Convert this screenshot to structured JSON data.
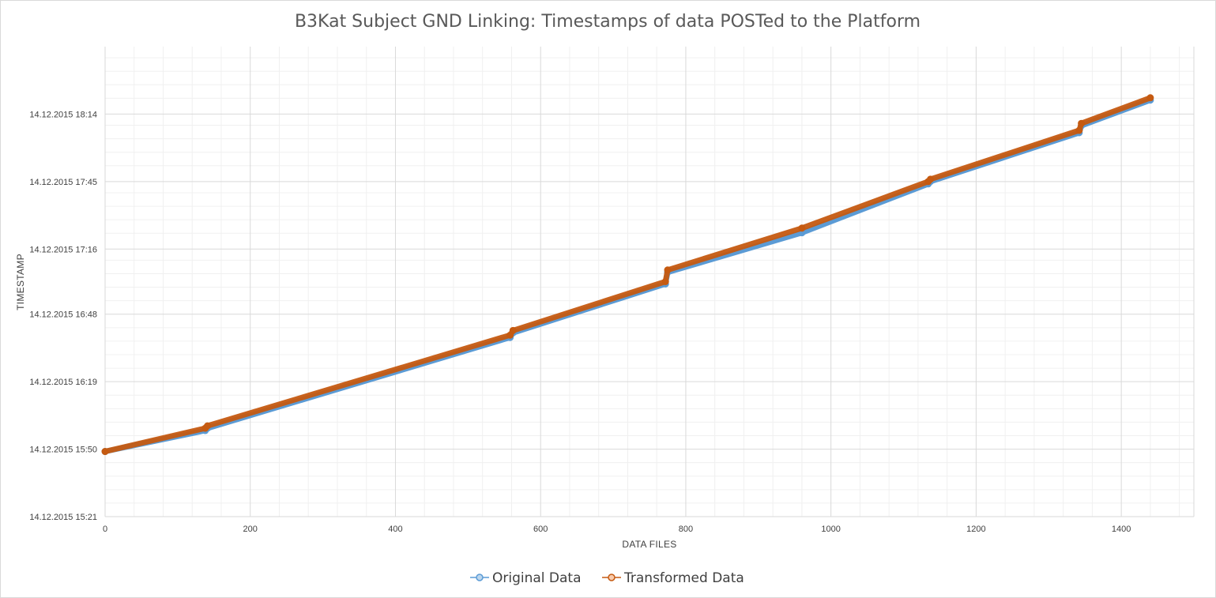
{
  "chart_data": {
    "type": "scatter",
    "title": "B3Kat Subject GND Linking: Timestamps of data POSTed to the Platform",
    "xlabel": "DATA FILES",
    "ylabel": "TIMESTAMP",
    "xlim": [
      0,
      1500
    ],
    "x_ticks": [
      0,
      200,
      400,
      600,
      800,
      1000,
      1200,
      1400
    ],
    "y_ticks": [
      "14.12.2015 15:21",
      "14.12.2015 15:50",
      "14.12.2015 16:19",
      "14.12.2015 16:48",
      "14.12.2015 17:16",
      "14.12.2015 17:45",
      "14.12.2015 18:14"
    ],
    "ylim": [
      "14.12.2015 15:21",
      "14.12.2015 18:43"
    ],
    "grid": true,
    "minor_grid": true,
    "legend_position": "bottom",
    "series": [
      {
        "name": "Original Data",
        "color": "#5b9bd5",
        "marker": "circle",
        "points": [
          [
            0,
            "14.12.2015 15:49"
          ],
          [
            138,
            "14.12.2015 15:58"
          ],
          [
            141,
            "14.12.2015 15:59"
          ],
          [
            558,
            "14.12.2015 16:38"
          ],
          [
            562,
            "14.12.2015 16:40"
          ],
          [
            772,
            "14.12.2015 17:01"
          ],
          [
            775,
            "14.12.2015 17:06"
          ],
          [
            960,
            "14.12.2015 17:23"
          ],
          [
            1134,
            "14.12.2015 17:44"
          ],
          [
            1137,
            "14.12.2015 17:45"
          ],
          [
            1342,
            "14.12.2015 18:06"
          ],
          [
            1345,
            "14.12.2015 18:09"
          ],
          [
            1440,
            "14.12.2015 18:20"
          ]
        ]
      },
      {
        "name": "Transformed Data",
        "color": "#c55a11",
        "marker": "circle",
        "points": [
          [
            0,
            "14.12.2015 15:49"
          ],
          [
            138,
            "14.12.2015 15:59"
          ],
          [
            141,
            "14.12.2015 16:00"
          ],
          [
            558,
            "14.12.2015 16:39"
          ],
          [
            562,
            "14.12.2015 16:41"
          ],
          [
            772,
            "14.12.2015 17:02"
          ],
          [
            775,
            "14.12.2015 17:07"
          ],
          [
            960,
            "14.12.2015 17:25"
          ],
          [
            1134,
            "14.12.2015 17:45"
          ],
          [
            1137,
            "14.12.2015 17:46"
          ],
          [
            1342,
            "14.12.2015 18:07"
          ],
          [
            1345,
            "14.12.2015 18:10"
          ],
          [
            1440,
            "14.12.2015 18:21"
          ]
        ]
      }
    ]
  }
}
